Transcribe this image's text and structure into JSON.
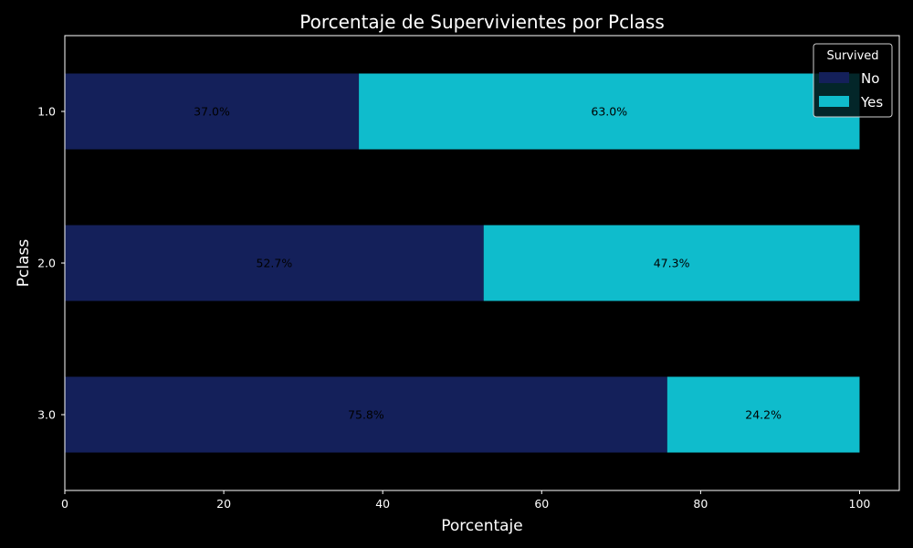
{
  "chart_data": {
    "type": "bar",
    "orientation": "horizontal",
    "stacked": true,
    "title": "Porcentaje de Supervivientes por Pclass",
    "xlabel": "Porcentaje",
    "ylabel": "Pclass",
    "xlim": [
      0,
      105
    ],
    "x_ticks": [
      "0",
      "20",
      "40",
      "60",
      "80",
      "100"
    ],
    "categories": [
      "1.0",
      "2.0",
      "3.0"
    ],
    "series": [
      {
        "name": "No",
        "values": [
          37.0,
          52.7,
          75.8
        ],
        "labels": [
          "37.0%",
          "52.7%",
          "75.8%"
        ],
        "color": "#14205a"
      },
      {
        "name": "Yes",
        "values": [
          63.0,
          47.3,
          24.2
        ],
        "labels": [
          "63.0%",
          "47.3%",
          "24.2%"
        ],
        "color": "#0fbccc"
      }
    ],
    "legend": {
      "title": "Survived",
      "placement": "top-right"
    },
    "grid": false,
    "background": "#000000",
    "text_color": "#ffffff",
    "label_color": "#000000"
  }
}
